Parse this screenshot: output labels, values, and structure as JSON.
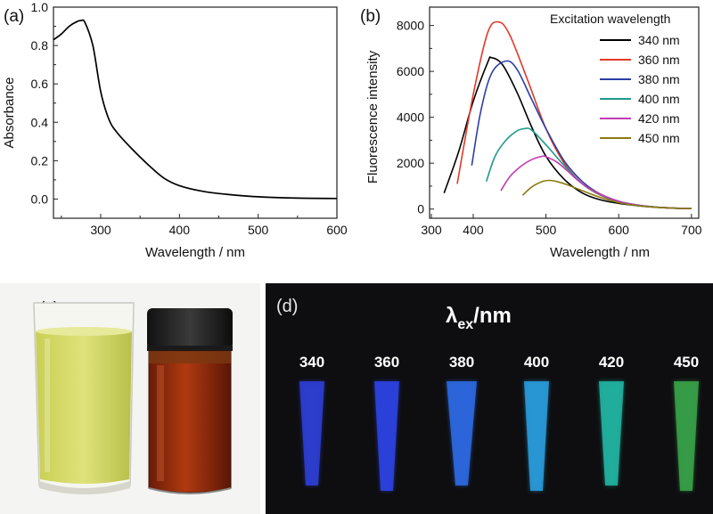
{
  "chart_data": [
    {
      "panel": "(a)",
      "type": "line",
      "title": "",
      "xlabel": "Wavelength / nm",
      "ylabel": "Absorbance",
      "xlim": [
        240,
        600
      ],
      "ylim": [
        -0.1,
        1.0
      ],
      "xticks": [
        "300",
        "400",
        "500",
        "600"
      ],
      "yticks": [
        "0.0",
        "0.2",
        "0.4",
        "0.6",
        "0.8",
        "1.0"
      ],
      "series": [
        {
          "name": "Absorbance",
          "color": "#000000",
          "x": [
            240,
            250,
            260,
            270,
            275,
            280,
            290,
            300,
            310,
            320,
            340,
            360,
            380,
            400,
            430,
            460,
            500,
            550,
            600
          ],
          "y": [
            0.83,
            0.86,
            0.9,
            0.925,
            0.93,
            0.92,
            0.8,
            0.56,
            0.42,
            0.35,
            0.26,
            0.18,
            0.11,
            0.07,
            0.04,
            0.025,
            0.012,
            0.005,
            0.003
          ]
        }
      ]
    },
    {
      "panel": "(b)",
      "type": "line",
      "title": "",
      "xlabel": "Wavelength / nm",
      "ylabel": "Fluorescence intensity",
      "xlim": [
        340,
        710
      ],
      "ylim": [
        -400,
        8800
      ],
      "xticks": [
        "300",
        "400",
        "500",
        "600",
        "700"
      ],
      "yticks": [
        "0",
        "2000",
        "4000",
        "6000",
        "8000"
      ],
      "legend_title": "Excitation wavelength",
      "legend_position": "top-right",
      "series": [
        {
          "name": "340 nm",
          "color": "#000000",
          "x": [
            360,
            380,
            400,
            420,
            425,
            440,
            460,
            480,
            500,
            525,
            550,
            575,
            600,
            625,
            650,
            675,
            700
          ],
          "y": [
            700,
            2500,
            4700,
            6400,
            6600,
            6300,
            5100,
            3600,
            2300,
            1300,
            700,
            400,
            250,
            150,
            80,
            40,
            20
          ]
        },
        {
          "name": "360 nm",
          "color": "#e03a2a",
          "x": [
            378,
            400,
            420,
            435,
            450,
            475,
            500,
            525,
            550,
            575,
            600,
            625,
            650,
            675,
            700
          ],
          "y": [
            1100,
            5000,
            7700,
            8150,
            7600,
            5600,
            3500,
            2000,
            1100,
            600,
            320,
            170,
            90,
            45,
            20
          ]
        },
        {
          "name": "380 nm",
          "color": "#2b3fa6",
          "x": [
            398,
            410,
            425,
            445,
            460,
            480,
            500,
            525,
            550,
            575,
            600,
            625,
            650,
            675,
            700
          ],
          "y": [
            1900,
            4200,
            5900,
            6450,
            6100,
            4800,
            3500,
            2100,
            1200,
            650,
            340,
            180,
            90,
            45,
            20
          ]
        },
        {
          "name": "400 nm",
          "color": "#1f9a8a",
          "x": [
            418,
            430,
            445,
            460,
            470,
            480,
            500,
            525,
            550,
            575,
            600,
            625,
            650,
            675,
            700
          ],
          "y": [
            1200,
            2300,
            3000,
            3400,
            3500,
            3450,
            2800,
            1900,
            1100,
            620,
            330,
            170,
            90,
            40,
            20
          ]
        },
        {
          "name": "420 nm",
          "color": "#c23bb0",
          "x": [
            438,
            450,
            465,
            480,
            495,
            500,
            515,
            530,
            550,
            575,
            600,
            625,
            650,
            675,
            700
          ],
          "y": [
            800,
            1400,
            1850,
            2150,
            2300,
            2280,
            2050,
            1650,
            1100,
            650,
            340,
            170,
            80,
            40,
            20
          ]
        },
        {
          "name": "450 nm",
          "color": "#8a7a10",
          "x": [
            468,
            480,
            495,
            505,
            515,
            530,
            550,
            575,
            600,
            625,
            650,
            675,
            700
          ],
          "y": [
            600,
            950,
            1200,
            1250,
            1200,
            1050,
            800,
            500,
            280,
            150,
            80,
            40,
            20
          ]
        }
      ]
    }
  ],
  "panel_c": {
    "label": "(c)"
  },
  "panel_d": {
    "label": "(d)",
    "title_main": "λ",
    "title_sub": "ex",
    "title_unit": "/nm",
    "samples": [
      {
        "value": "340",
        "color": "#2f3fd8"
      },
      {
        "value": "360",
        "color": "#2e44e8"
      },
      {
        "value": "380",
        "color": "#2e6ce8"
      },
      {
        "value": "400",
        "color": "#2aa0e0"
      },
      {
        "value": "420",
        "color": "#22b8a6"
      },
      {
        "value": "450",
        "color": "#3aa64a"
      }
    ]
  }
}
